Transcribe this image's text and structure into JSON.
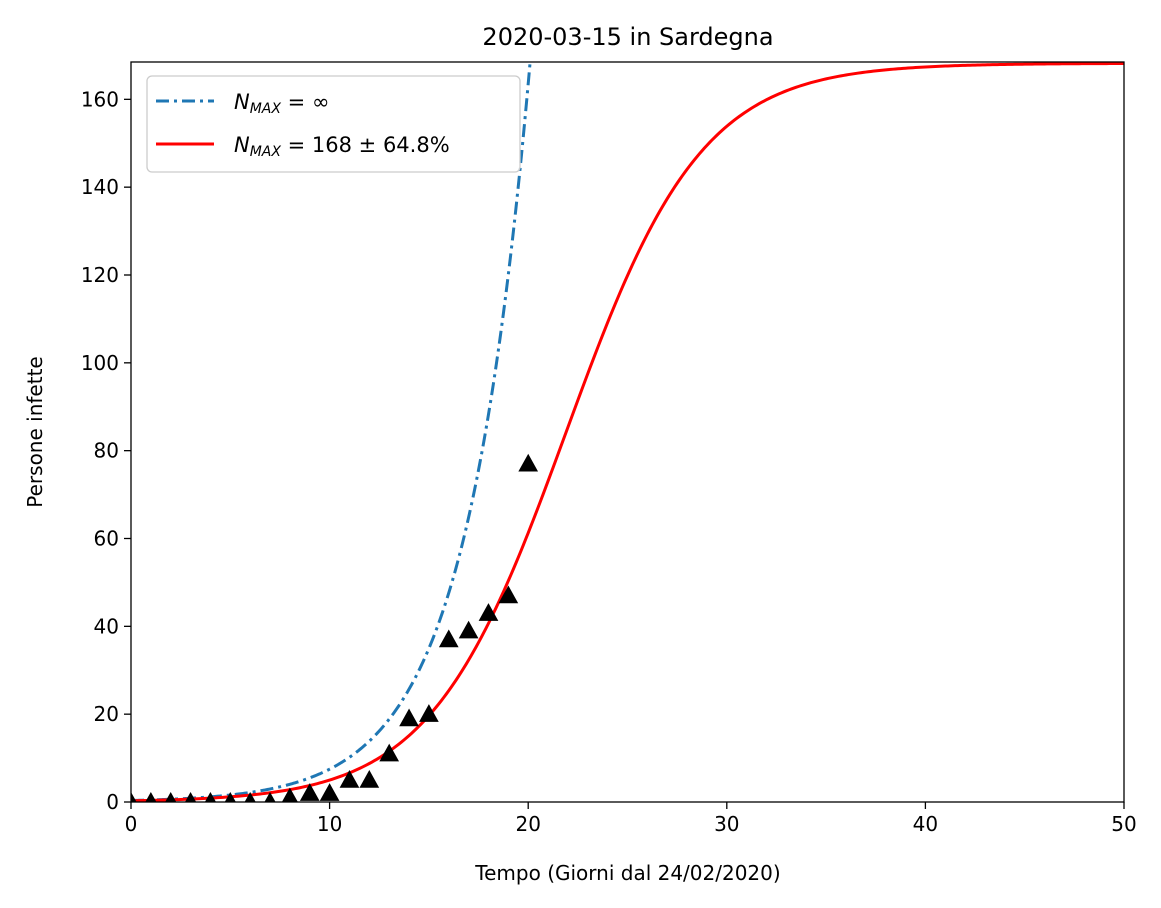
{
  "chart_data": {
    "type": "line",
    "title": "2020-03-15 in Sardegna",
    "xlabel": "Tempo (Giorni dal 24/02/2020)",
    "ylabel": "Persone infette",
    "xlim": [
      0,
      50
    ],
    "ylim": [
      0,
      168.5
    ],
    "xticks": [
      0,
      10,
      20,
      30,
      40,
      50
    ],
    "yticks": [
      0,
      20,
      40,
      60,
      80,
      100,
      120,
      140,
      160
    ],
    "grid": false,
    "legend_position": "upper-left",
    "series": [
      {
        "name_main": "N",
        "name_sub": "MAX",
        "name_rest": " = ∞",
        "style": "dashdot",
        "color": "#1f77b4",
        "model": "exponential",
        "params": {
          "a": 0.342,
          "k": 0.3085
        },
        "x_range": [
          0,
          22.8
        ]
      },
      {
        "name_main": "N",
        "name_sub": "MAX",
        "name_rest": " = 168 ± 64.8%",
        "style": "solid",
        "color": "#ff0000",
        "model": "logistic",
        "params": {
          "K": 168.2,
          "r": 0.293,
          "t0": 21.9
        },
        "x_range": [
          0,
          50
        ]
      }
    ],
    "observed": {
      "marker": "triangle",
      "color": "#000000",
      "x": [
        0,
        1,
        2,
        3,
        4,
        5,
        6,
        7,
        8,
        9,
        10,
        11,
        12,
        13,
        14,
        15,
        16,
        17,
        18,
        19,
        20
      ],
      "y": [
        0,
        0,
        0,
        0,
        0,
        0,
        0,
        0,
        1,
        2,
        2,
        5,
        5,
        11,
        19,
        20,
        37,
        39,
        43,
        47,
        77
      ]
    }
  }
}
